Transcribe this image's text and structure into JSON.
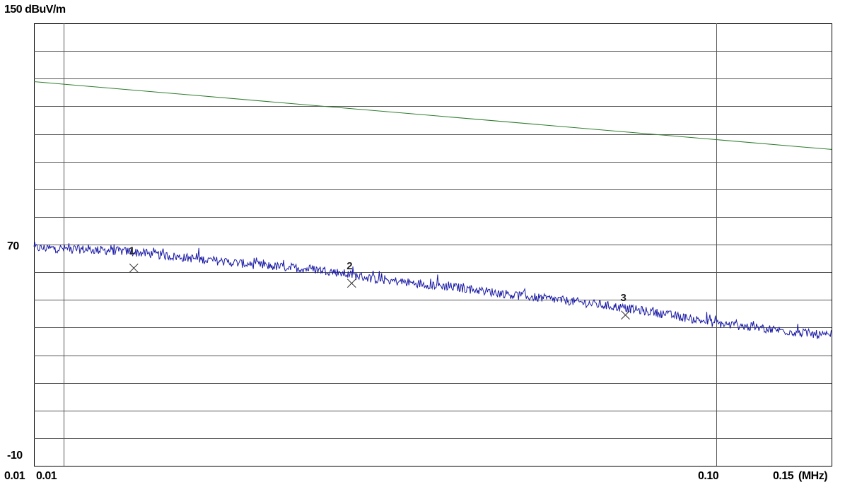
{
  "chart_data": {
    "type": "line",
    "ylabel": "150 dBuV/m",
    "xunit": "(MHz)",
    "xscale": "log",
    "xlim": [
      0.009,
      0.15
    ],
    "ylim": [
      -10,
      150
    ],
    "y_tick_labels": [
      "70",
      "-10"
    ],
    "x_tick_labels": [
      "0.01",
      "0.01",
      "0.10",
      "0.15"
    ],
    "grid": true,
    "series": [
      {
        "role": "limit",
        "color": "#2e7d2e",
        "x": [
          0.009,
          0.15
        ],
        "y": [
          128.9,
          104.4
        ]
      },
      {
        "role": "measurement",
        "color": "#1a1aa6",
        "x": [
          0.009,
          0.0102,
          0.0125,
          0.015,
          0.02,
          0.025,
          0.03,
          0.04,
          0.05,
          0.06,
          0.07,
          0.08,
          0.09,
          0.1,
          0.12,
          0.15
        ],
        "y": [
          68.8,
          68.5,
          67.5,
          65.5,
          62.5,
          60.8,
          57.5,
          54.5,
          51.5,
          49.5,
          47.5,
          45.5,
          43.5,
          41.5,
          39.5,
          36.8
        ]
      }
    ],
    "markers": [
      {
        "label": "1",
        "x": 0.0128,
        "y": 61.5
      },
      {
        "label": "2",
        "x": 0.0276,
        "y": 56.0
      },
      {
        "label": "3",
        "x": 0.0725,
        "y": 44.5
      }
    ]
  }
}
